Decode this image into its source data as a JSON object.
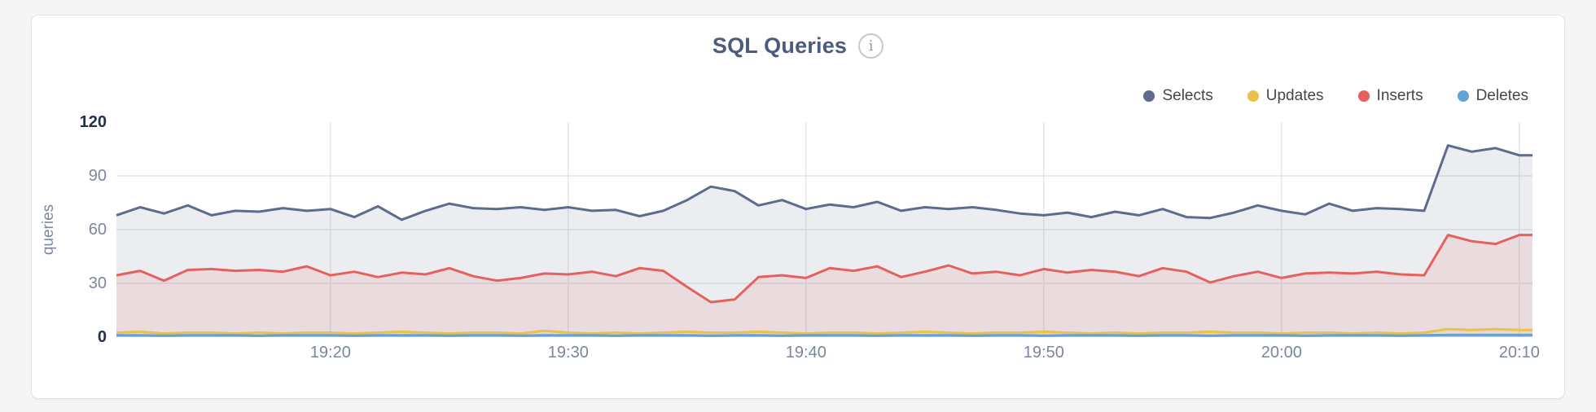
{
  "header": {
    "title": "SQL Queries",
    "info_icon": "i"
  },
  "chart_data": {
    "type": "area",
    "title": "SQL Queries",
    "ylabel": "queries",
    "xlabel": "",
    "ylim": [
      0,
      120
    ],
    "y_ticks": [
      0,
      30,
      60,
      90,
      120
    ],
    "x_start": "19:11",
    "x_step_minutes": 1,
    "x_ticks": [
      {
        "label": "19:20",
        "minute": 9
      },
      {
        "label": "19:30",
        "minute": 19
      },
      {
        "label": "19:40",
        "minute": 29
      },
      {
        "label": "19:50",
        "minute": 39
      },
      {
        "label": "20:00",
        "minute": 49
      },
      {
        "label": "20:10",
        "minute": 59
      }
    ],
    "grid": true,
    "legend_position": "top-right",
    "colors": {
      "grid": "#e6e6e8",
      "tick_label": "#7b87a0",
      "tick_label_edge": "#21304e",
      "title": "#4b5b7c",
      "legend_text": "#474747"
    },
    "series": [
      {
        "name": "Selects",
        "color": "#5d6c8d",
        "fill_opacity": 0.12,
        "values": [
          68,
          72.5,
          69,
          73.5,
          68,
          70.5,
          70,
          72,
          70.5,
          71.5,
          67,
          73,
          65.5,
          70.5,
          74.5,
          72,
          71.5,
          72.5,
          71,
          72.5,
          70.5,
          71,
          67.5,
          70.5,
          76.5,
          84,
          81.5,
          73.5,
          76.5,
          71.5,
          74,
          72.5,
          75.5,
          70.5,
          72.5,
          71.5,
          72.5,
          71,
          69,
          68,
          69.5,
          67,
          70,
          68,
          71.5,
          67,
          66.5,
          69.5,
          73.5,
          70.5,
          68.5,
          74.5,
          70.5,
          72,
          71.5,
          70.5,
          107,
          103.5,
          105.5,
          101.5
        ]
      },
      {
        "name": "Updates",
        "color": "#ebc04b",
        "fill_opacity": 0.15,
        "values": [
          2.5,
          3,
          2,
          2.5,
          2.5,
          2,
          2.5,
          2,
          2.5,
          2.5,
          2,
          2.5,
          3,
          2.5,
          2,
          2.5,
          2.5,
          2,
          3.5,
          2.5,
          2,
          2.5,
          2,
          2.5,
          3,
          2.5,
          2.5,
          3,
          2.5,
          2,
          2.5,
          2.5,
          2,
          2.5,
          3,
          2.5,
          2,
          2.5,
          2.5,
          3,
          2.5,
          2,
          2.5,
          2,
          2.5,
          2.5,
          3,
          2.5,
          2.5,
          2,
          2.5,
          2.5,
          2,
          2.5,
          2,
          2.5,
          4.5,
          4,
          4.5,
          4
        ]
      },
      {
        "name": "Inserts",
        "color": "#e4615e",
        "fill_opacity": 0.12,
        "values": [
          34.5,
          37,
          31.5,
          37.5,
          38,
          37,
          37.5,
          36.5,
          39.5,
          34.5,
          36.5,
          33.5,
          36,
          35,
          38.5,
          34,
          31.5,
          33,
          35.5,
          35,
          36.5,
          34,
          38.5,
          37,
          28,
          19.5,
          21,
          33.5,
          34.5,
          33,
          38.5,
          37,
          39.5,
          33.5,
          36.5,
          40,
          35.5,
          36.5,
          34.5,
          38,
          36,
          37.5,
          36.5,
          34,
          38.5,
          36.5,
          30.5,
          34,
          36.5,
          33,
          35.5,
          36,
          35.5,
          36.5,
          35,
          34.5,
          57,
          53.5,
          52,
          57
        ]
      },
      {
        "name": "Deletes",
        "color": "#64a1d5",
        "fill_opacity": 0.28,
        "values": [
          1,
          1,
          0.8,
          1,
          1,
          1,
          0.8,
          1,
          1,
          1,
          0.8,
          1,
          1,
          1,
          0.8,
          1,
          1,
          0.8,
          1,
          1,
          1,
          0.8,
          1,
          1,
          1,
          0.8,
          1,
          1,
          0.8,
          1,
          1,
          1,
          0.8,
          1,
          1,
          1,
          0.8,
          1,
          1,
          0.8,
          1,
          1,
          1,
          0.8,
          1,
          1,
          0.8,
          1,
          1,
          1,
          0.8,
          1,
          1,
          1,
          0.8,
          1,
          1.2,
          1.2,
          1.2,
          1.2
        ]
      }
    ]
  }
}
